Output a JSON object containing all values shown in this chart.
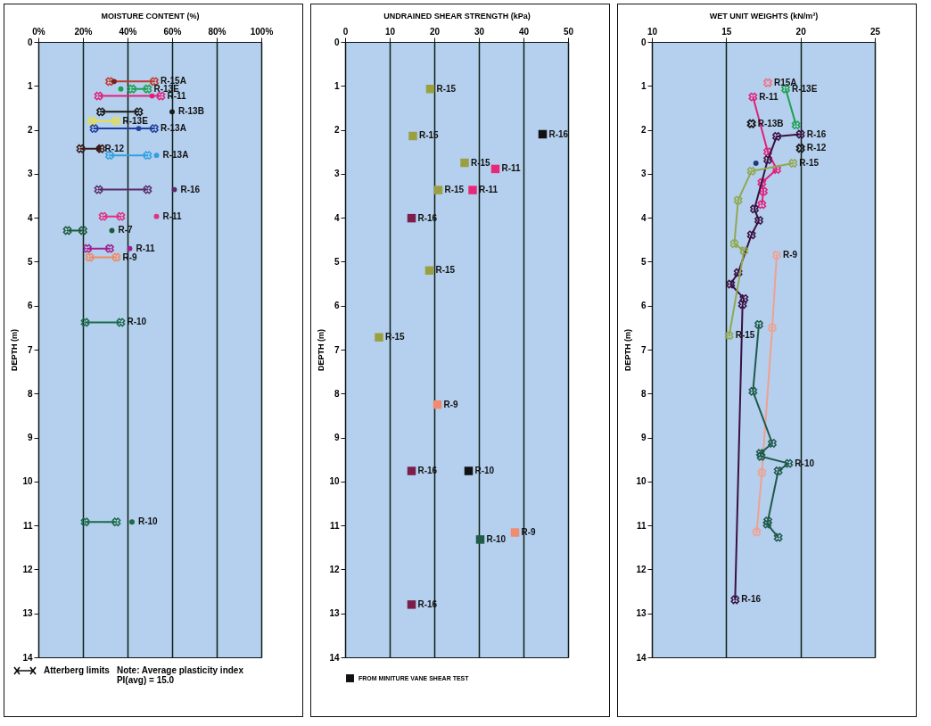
{
  "chart_data": [
    {
      "type": "line",
      "marker": "cross",
      "xlabel": "MOISTURE CONTENT (%)",
      "ylabel": "DEPTH (m)",
      "xlim": [
        0,
        100
      ],
      "xticks": [
        {
          "value": 0,
          "label": "0%"
        },
        {
          "value": 20,
          "label": "20%"
        },
        {
          "value": 40,
          "label": "40%"
        },
        {
          "value": 60,
          "label": "60%"
        },
        {
          "value": 80,
          "label": "80%"
        },
        {
          "value": 100,
          "label": "100%"
        }
      ],
      "ylim": [
        14,
        0
      ],
      "yticks": [
        0,
        1,
        2,
        3,
        4,
        5,
        6,
        7,
        8,
        9,
        10,
        11,
        12,
        13,
        14
      ],
      "grid": "x",
      "series": [
        {
          "color": "#c0392b",
          "x": [
            32,
            52
          ],
          "values": [
            0.9,
            0.9
          ]
        },
        {
          "type": "scatter",
          "marker": "circle",
          "color": "#7a1f1f",
          "x": [
            34
          ],
          "values": [
            0.9
          ]
        },
        {
          "color": "#1fa050",
          "x": [
            42,
            49
          ],
          "values": [
            1.07,
            1.07
          ]
        },
        {
          "type": "scatter",
          "marker": "circle",
          "color": "#1fa050",
          "x": [
            37
          ],
          "values": [
            1.07
          ]
        },
        {
          "color": "#e0207a",
          "x": [
            27,
            55
          ],
          "values": [
            1.23,
            1.23
          ]
        },
        {
          "type": "scatter",
          "marker": "circle",
          "color": "#e0207a",
          "x": [
            51
          ],
          "values": [
            1.23
          ]
        },
        {
          "color": "#1a1a1a",
          "x": [
            28,
            45
          ],
          "values": [
            1.59,
            1.59
          ]
        },
        {
          "type": "scatter",
          "marker": "circle",
          "color": "#1a1a1a",
          "x": [
            60
          ],
          "values": [
            1.59
          ]
        },
        {
          "color": "#e8e040",
          "x": [
            24,
            35
          ],
          "values": [
            1.8,
            1.8
          ]
        },
        {
          "color": "#2040a0",
          "x": [
            25,
            52
          ],
          "values": [
            1.97,
            1.97
          ]
        },
        {
          "type": "scatter",
          "marker": "circle",
          "color": "#2040a0",
          "x": [
            45
          ],
          "values": [
            1.97
          ]
        },
        {
          "color": "#3a1a1a",
          "x": [
            19,
            28
          ],
          "values": [
            2.43,
            2.43
          ]
        },
        {
          "type": "scatter",
          "marker": "circle",
          "color": "#3a1a1a",
          "x": [
            27
          ],
          "values": [
            2.43
          ]
        },
        {
          "color": "#30a0e0",
          "x": [
            32,
            49
          ],
          "values": [
            2.58,
            2.58
          ]
        },
        {
          "type": "scatter",
          "marker": "circle",
          "color": "#30a0e0",
          "x": [
            53
          ],
          "values": [
            2.58
          ]
        },
        {
          "color": "#5a2a6a",
          "x": [
            27,
            49
          ],
          "values": [
            3.36,
            3.36
          ]
        },
        {
          "type": "scatter",
          "marker": "circle",
          "color": "#5a2a6a",
          "x": [
            61
          ],
          "values": [
            3.36
          ]
        },
        {
          "color": "#e03080",
          "x": [
            29,
            37
          ],
          "values": [
            3.97,
            3.97
          ]
        },
        {
          "type": "scatter",
          "marker": "circle",
          "color": "#e03080",
          "x": [
            53
          ],
          "values": [
            3.97
          ]
        },
        {
          "color": "#1a5a3a",
          "x": [
            13,
            20
          ],
          "values": [
            4.29,
            4.29
          ]
        },
        {
          "type": "scatter",
          "marker": "circle",
          "color": "#1a5a3a",
          "x": [
            33
          ],
          "values": [
            4.29
          ]
        },
        {
          "color": "#a02090",
          "x": [
            22,
            32
          ],
          "values": [
            4.7,
            4.7
          ]
        },
        {
          "type": "scatter",
          "marker": "circle",
          "color": "#a02090",
          "x": [
            41
          ],
          "values": [
            4.7
          ]
        },
        {
          "color": "#f08a60",
          "x": [
            23,
            35
          ],
          "values": [
            4.9,
            4.9
          ]
        },
        {
          "color": "#1a6a4a",
          "x": [
            21,
            37
          ],
          "values": [
            6.38,
            6.38
          ]
        },
        {
          "color": "#1a6a4a",
          "x": [
            21,
            35
          ],
          "values": [
            10.92,
            10.92
          ]
        },
        {
          "type": "scatter",
          "marker": "circle",
          "color": "#1a6a4a",
          "x": [
            42
          ],
          "values": [
            10.92
          ]
        }
      ],
      "annotations": [
        {
          "text": "R-15A",
          "x": 52,
          "y": 0.9
        },
        {
          "text": "R-13E",
          "x": 49,
          "y": 1.07
        },
        {
          "text": "R-11",
          "x": 55,
          "y": 1.23
        },
        {
          "text": "R-13B",
          "x": 60,
          "y": 1.59
        },
        {
          "text": "R-13E",
          "x": 35,
          "y": 1.8
        },
        {
          "text": "R-13A",
          "x": 52,
          "y": 1.97
        },
        {
          "text": "R-12",
          "x": 27,
          "y": 2.43
        },
        {
          "text": "R-13A",
          "x": 53,
          "y": 2.58
        },
        {
          "text": "R-16",
          "x": 61,
          "y": 3.36
        },
        {
          "text": "R-11",
          "x": 53,
          "y": 3.97
        },
        {
          "text": "R-7",
          "x": 33,
          "y": 4.29
        },
        {
          "text": "R-11",
          "x": 41,
          "y": 4.7
        },
        {
          "text": "R-9",
          "x": 35,
          "y": 4.9
        },
        {
          "text": "R-10",
          "x": 37,
          "y": 6.38
        },
        {
          "text": "R-10",
          "x": 42,
          "y": 10.92
        },
        "Atterberg limits",
        "Note: Average plasticity index PI(avg) = 15.0"
      ]
    },
    {
      "type": "scatter",
      "marker": "square",
      "xlabel": "UNDRAINED SHEAR STRENGTH (kPa)",
      "ylabel": "DEPTH (m)",
      "xlim": [
        0,
        50
      ],
      "xticks": [
        0,
        10,
        20,
        30,
        40,
        50
      ],
      "ylim": [
        14,
        0
      ],
      "yticks": [
        0,
        1,
        2,
        3,
        4,
        5,
        6,
        7,
        8,
        9,
        10,
        11,
        12,
        13,
        14
      ],
      "grid": "x",
      "legend": "bottom",
      "series": [
        {
          "color": "#9aa040",
          "x": [
            19.1,
            15.2,
            26.8,
            20.9,
            18.9,
            7.6
          ],
          "values": [
            1.07,
            2.14,
            2.75,
            3.37,
            5.2,
            6.72
          ]
        },
        {
          "color": "#e8287a",
          "x": [
            33.7,
            28.6
          ],
          "values": [
            2.89,
            3.37
          ]
        },
        {
          "color": "#7a1f4a",
          "x": [
            14.9,
            14.9,
            14.9
          ],
          "values": [
            4.01,
            9.76,
            12.8
          ]
        },
        {
          "color": "#f08a70",
          "x": [
            20.7,
            38.1
          ],
          "values": [
            8.25,
            11.16
          ]
        },
        {
          "color": "#1f5a4a",
          "x": [
            30.3
          ],
          "values": [
            11.32
          ]
        },
        {
          "name": "FROM MINITURE VANE SHEAR TEST",
          "color": "#111111",
          "x": [
            44.3,
            27.7
          ],
          "values": [
            2.1,
            9.76
          ]
        }
      ],
      "annotations": [
        {
          "text": "R-15",
          "x": 19.1,
          "y": 1.07
        },
        {
          "text": "R-15",
          "x": 15.2,
          "y": 2.14
        },
        {
          "text": "R-15",
          "x": 26.8,
          "y": 2.75
        },
        {
          "text": "R-15",
          "x": 20.9,
          "y": 3.37
        },
        {
          "text": "R-15",
          "x": 18.9,
          "y": 5.2
        },
        {
          "text": "R-15",
          "x": 7.6,
          "y": 6.72
        },
        {
          "text": "R-16",
          "x": 44.3,
          "y": 2.1
        },
        {
          "text": "R-11",
          "x": 33.7,
          "y": 2.89
        },
        {
          "text": "R-11",
          "x": 28.6,
          "y": 3.37
        },
        {
          "text": "R-16",
          "x": 14.9,
          "y": 4.01
        },
        {
          "text": "R-9",
          "x": 20.7,
          "y": 8.25
        },
        {
          "text": "R-16",
          "x": 14.9,
          "y": 9.76
        },
        {
          "text": "R-10",
          "x": 27.7,
          "y": 9.76
        },
        {
          "text": "R-10",
          "x": 30.3,
          "y": 11.32
        },
        {
          "text": "R-9",
          "x": 38.1,
          "y": 11.16
        },
        {
          "text": "R-16",
          "x": 14.9,
          "y": 12.8
        }
      ]
    },
    {
      "type": "line",
      "marker": "cross",
      "xlabel": "WET UNIT WEIGHTS (kN/m³)",
      "ylabel": "DEPTH (m)",
      "xlim": [
        10,
        25
      ],
      "xticks": [
        10,
        15,
        20,
        25
      ],
      "ylim": [
        14,
        0
      ],
      "yticks": [
        0,
        1,
        2,
        3,
        4,
        5,
        6,
        7,
        8,
        9,
        10,
        11,
        12,
        13,
        14
      ],
      "grid": "x",
      "series": [
        {
          "type": "scatter",
          "color": "#e87a90",
          "x": [
            17.8
          ],
          "values": [
            0.93
          ]
        },
        {
          "color": "#e0207a",
          "x": [
            16.8,
            17.8,
            18.4,
            17.4,
            17.5,
            17.4
          ],
          "values": [
            1.25,
            2.5,
            2.9,
            3.2,
            3.4,
            3.7
          ]
        },
        {
          "color": "#1fa050",
          "x": [
            19.0,
            19.7
          ],
          "values": [
            1.07,
            1.89
          ]
        },
        {
          "type": "scatter",
          "color": "#1a1a1a",
          "x": [
            16.7
          ],
          "values": [
            1.86
          ]
        },
        {
          "color": "#3a1040",
          "x": [
            20.0,
            18.4,
            17.8,
            16.9,
            17.2,
            16.7,
            15.8,
            15.3,
            16.2,
            16.1,
            15.6
          ],
          "values": [
            2.1,
            2.15,
            2.68,
            3.8,
            4.06,
            4.39,
            5.25,
            5.51,
            5.84,
            5.97,
            12.69
          ]
        },
        {
          "type": "scatter",
          "color": "#1a1a1a",
          "x": [
            20.0
          ],
          "values": [
            2.42
          ]
        },
        {
          "type": "scatter",
          "marker": "circle",
          "color": "#1f3a7a",
          "x": [
            17.0
          ],
          "values": [
            2.76
          ]
        },
        {
          "color": "#90a850",
          "x": [
            19.5,
            16.7,
            15.8,
            15.55,
            16.2,
            15.2
          ],
          "values": [
            2.76,
            2.94,
            3.6,
            4.59,
            4.75,
            6.68
          ]
        },
        {
          "color": "#f0a090",
          "x": [
            18.4,
            18.1,
            17.4,
            17.05
          ],
          "values": [
            4.85,
            6.5,
            9.8,
            11.15
          ]
        },
        {
          "color": "#1f5a4a",
          "x": [
            17.2,
            16.8,
            18.1,
            17.3,
            17.35,
            19.2,
            18.5,
            17.8,
            17.76,
            18.5
          ],
          "values": [
            6.43,
            7.95,
            9.13,
            9.36,
            9.43,
            9.59,
            9.76,
            10.9,
            10.97,
            11.27
          ]
        }
      ],
      "annotations": [
        {
          "text": "R15A",
          "x": 17.8,
          "y": 0.93
        },
        {
          "text": "R-11",
          "x": 16.8,
          "y": 1.25
        },
        {
          "text": "R-13E",
          "x": 19.0,
          "y": 1.07
        },
        {
          "text": "R-13B",
          "x": 16.7,
          "y": 1.86
        },
        {
          "text": "R-16",
          "x": 20.0,
          "y": 2.1
        },
        {
          "text": "R-12",
          "x": 20.0,
          "y": 2.42
        },
        {
          "text": "R-15",
          "x": 19.5,
          "y": 2.76
        },
        {
          "text": "R-9",
          "x": 18.4,
          "y": 4.85
        },
        {
          "text": "R-15",
          "x": 15.2,
          "y": 6.68
        },
        {
          "text": "R-10",
          "x": 19.2,
          "y": 9.59
        },
        {
          "text": "R-16",
          "x": 15.6,
          "y": 12.69
        }
      ]
    }
  ]
}
